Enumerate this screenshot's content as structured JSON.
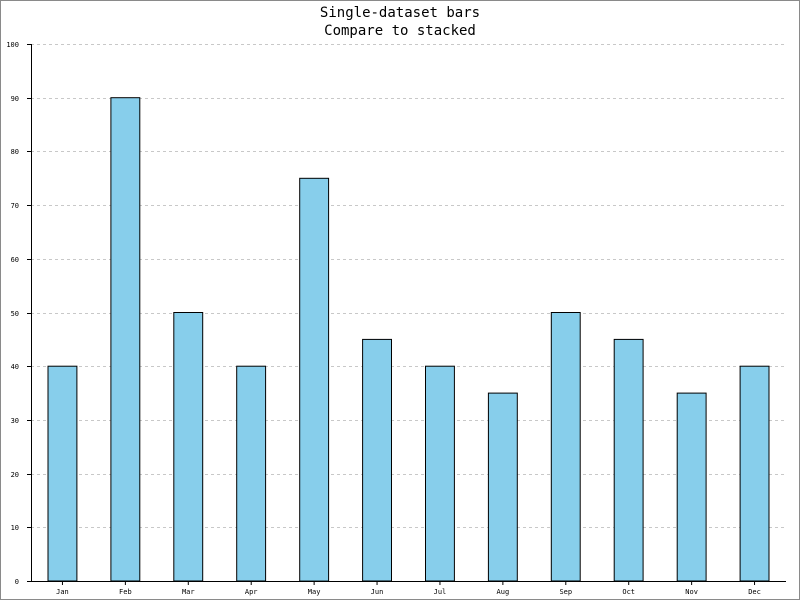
{
  "colors": {
    "bar_fill": "#87ceeb",
    "bar_stroke": "#000000",
    "grid": "#c8c8c8",
    "axis": "#000000",
    "background": "#ffffff"
  },
  "chart_data": {
    "type": "bar",
    "title": "Single-dataset bars",
    "subtitle": "Compare to stacked",
    "xlabel": "",
    "ylabel": "",
    "categories": [
      "Jan",
      "Feb",
      "Mar",
      "Apr",
      "May",
      "Jun",
      "Jul",
      "Aug",
      "Sep",
      "Oct",
      "Nov",
      "Dec"
    ],
    "values": [
      40,
      90,
      50,
      40,
      75,
      45,
      40,
      35,
      50,
      45,
      35,
      40
    ],
    "ylim": [
      0,
      100
    ],
    "yticks": [
      0,
      10,
      20,
      30,
      40,
      50,
      60,
      70,
      80,
      90,
      100
    ],
    "grid": true,
    "grid_style": "dashed horizontal"
  }
}
